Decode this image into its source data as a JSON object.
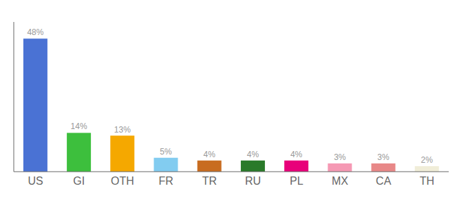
{
  "chart_data": {
    "type": "bar",
    "categories": [
      "US",
      "GI",
      "OTH",
      "FR",
      "TR",
      "RU",
      "PL",
      "MX",
      "CA",
      "TH"
    ],
    "values": [
      48,
      14,
      13,
      5,
      4,
      4,
      4,
      3,
      3,
      2
    ],
    "colors": [
      "#4a72d4",
      "#3dbf3d",
      "#f5a800",
      "#82ccf0",
      "#c86c20",
      "#2a7a2a",
      "#e8007a",
      "#f599b4",
      "#e88888",
      "#f0edd8"
    ],
    "data_labels": true,
    "value_labels": [
      "48%",
      "14%",
      "13%",
      "5%",
      "4%",
      "4%",
      "4%",
      "3%",
      "3%",
      "2%"
    ],
    "ylim": [
      0,
      54
    ],
    "tick_labels": "x",
    "grid": false
  }
}
